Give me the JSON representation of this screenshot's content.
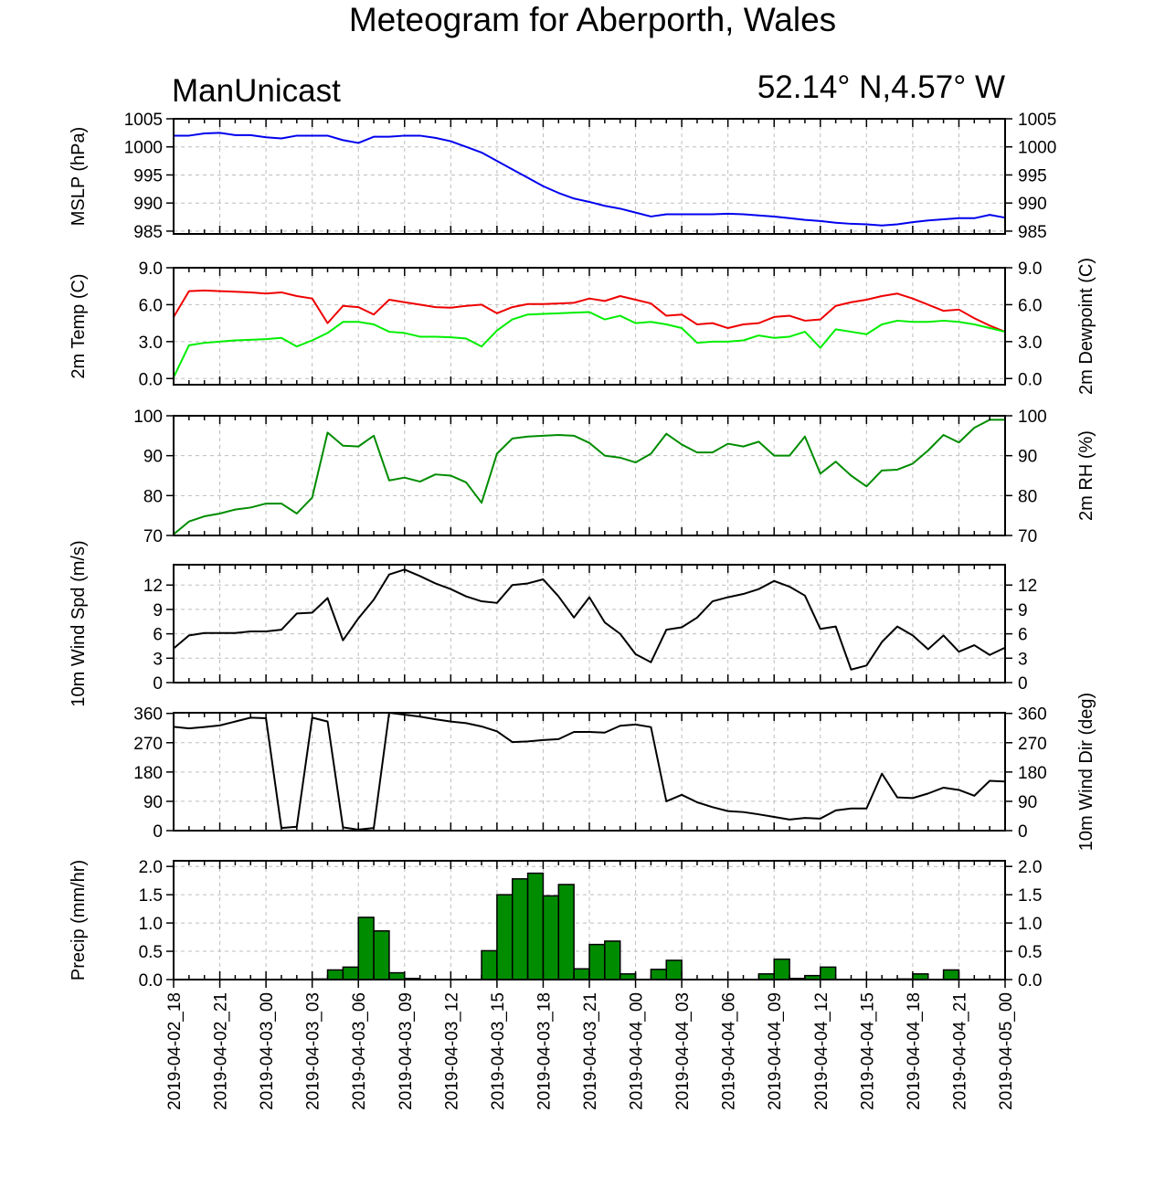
{
  "title": "Meteogram for Aberporth, Wales",
  "subtitle_left": "ManUnicast",
  "subtitle_right": "52.14° N,4.57° W",
  "chart_data": {
    "type": "line",
    "x_tick_labels": [
      "2019-04-02_18",
      "2019-04-02_21",
      "2019-04-03_00",
      "2019-04-03_03",
      "2019-04-03_06",
      "2019-04-03_09",
      "2019-04-03_12",
      "2019-04-03_15",
      "2019-04-03_18",
      "2019-04-03_21",
      "2019-04-04_00",
      "2019-04-04_03",
      "2019-04-04_06",
      "2019-04-04_09",
      "2019-04-04_12",
      "2019-04-04_15",
      "2019-04-04_18",
      "2019-04-04_21",
      "2019-04-05_00"
    ],
    "x_hours_span": 54,
    "panels": [
      {
        "id": "mslp",
        "type": "line",
        "ylabel": "MSLP (hPa)",
        "ylabel_right": "",
        "ylim": [
          984.5,
          1005
        ],
        "yticks": [
          985,
          990,
          995,
          1000,
          1005
        ],
        "tick_labels": [
          "985",
          "990",
          "995",
          "1000",
          "1005"
        ],
        "series": [
          {
            "color": "#0000ee",
            "values": [
              1002,
              1002,
              1002.4,
              1002.5,
              1002.1,
              1002.1,
              1001.7,
              1001.5,
              1002,
              1002,
              1002,
              1001.2,
              1000.7,
              1001.8,
              1001.8,
              1002,
              1002,
              1001.6,
              1001,
              1000,
              999,
              997.5,
              996,
              994.5,
              993,
              991.8,
              990.8,
              990.2,
              989.5,
              989,
              988.3,
              987.6,
              988,
              988,
              988,
              988,
              988.1,
              988,
              987.8,
              987.6,
              987.3,
              987,
              986.8,
              986.5,
              986.3,
              986.2,
              986,
              986.2,
              986.6,
              986.9,
              987.1,
              987.3,
              987.3,
              987.9,
              987.4
            ]
          }
        ]
      },
      {
        "id": "temp",
        "type": "line",
        "ylabel": "2m Temp (C)",
        "ylabel_right": "2m Dewpoint (C)",
        "ylim": [
          -0.5,
          9.0
        ],
        "yticks": [
          0,
          3,
          6,
          9
        ],
        "tick_labels": [
          "0.0",
          "3.0",
          "6.0",
          "9.0"
        ],
        "series": [
          {
            "color": "#ee0000",
            "values": [
              5.0,
              7.1,
              7.15,
              7.1,
              7.05,
              7.0,
              6.9,
              7.0,
              6.7,
              6.5,
              4.5,
              5.9,
              5.8,
              5.2,
              6.4,
              6.2,
              6.0,
              5.8,
              5.75,
              5.9,
              6.0,
              5.3,
              5.8,
              6.05,
              6.05,
              6.1,
              6.15,
              6.5,
              6.3,
              6.7,
              6.4,
              6.1,
              5.1,
              5.2,
              4.4,
              4.5,
              4.1,
              4.4,
              4.5,
              5.0,
              5.1,
              4.7,
              4.8,
              5.9,
              6.2,
              6.4,
              6.7,
              6.9,
              6.5,
              6.0,
              5.5,
              5.6,
              4.9,
              4.3,
              3.8
            ]
          },
          {
            "color": "#00ee00",
            "values": [
              0.1,
              2.7,
              2.9,
              3.0,
              3.1,
              3.15,
              3.2,
              3.3,
              2.6,
              3.1,
              3.7,
              4.6,
              4.6,
              4.4,
              3.8,
              3.7,
              3.4,
              3.4,
              3.35,
              3.25,
              2.6,
              3.9,
              4.8,
              5.2,
              5.25,
              5.3,
              5.35,
              5.4,
              4.8,
              5.1,
              4.5,
              4.6,
              4.4,
              4.1,
              2.9,
              3.0,
              3.0,
              3.1,
              3.5,
              3.3,
              3.4,
              3.8,
              2.5,
              4.0,
              3.8,
              3.6,
              4.4,
              4.7,
              4.6,
              4.6,
              4.7,
              4.6,
              4.4,
              4.1,
              3.8
            ]
          }
        ]
      },
      {
        "id": "rh",
        "type": "line",
        "ylabel": "",
        "ylabel_right": "2m RH (%)",
        "ylim": [
          70,
          100
        ],
        "yticks": [
          70,
          80,
          90,
          100
        ],
        "tick_labels": [
          "70",
          "80",
          "90",
          "100"
        ],
        "series": [
          {
            "color": "#008c00",
            "values": [
              70.3,
              73.5,
              74.8,
              75.5,
              76.5,
              77,
              78,
              78,
              75.5,
              79.5,
              95.8,
              92.5,
              92.3,
              95,
              83.8,
              84.5,
              83.5,
              85.3,
              85,
              83.3,
              78.2,
              90.5,
              94.3,
              94.8,
              95,
              95.2,
              95,
              93.2,
              90,
              89.5,
              88.3,
              90.5,
              95.5,
              92.8,
              90.8,
              90.8,
              93,
              92.3,
              93.5,
              90,
              90,
              94.8,
              85.5,
              88.5,
              85,
              82.3,
              86.3,
              86.5,
              88,
              91.3,
              95.2,
              93.3,
              97,
              99,
              99
            ]
          }
        ]
      },
      {
        "id": "wspd",
        "type": "line",
        "ylabel": "10m Wind Spd (m/s)",
        "ylabel_right": "",
        "ylim": [
          0,
          14.5
        ],
        "yticks": [
          0,
          3,
          6,
          9,
          12
        ],
        "tick_labels": [
          "0",
          "3",
          "6",
          "9",
          "12"
        ],
        "series": [
          {
            "color": "#000000",
            "values": [
              4.2,
              5.8,
              6.1,
              6.1,
              6.1,
              6.3,
              6.3,
              6.5,
              8.5,
              8.6,
              10.4,
              5.2,
              7.9,
              10.2,
              13.3,
              13.9,
              13.1,
              12.2,
              11.5,
              10.6,
              10,
              9.8,
              12,
              12.2,
              12.7,
              10.6,
              8,
              10.5,
              7.4,
              6,
              3.5,
              2.5,
              6.5,
              6.8,
              8,
              10,
              10.5,
              10.9,
              11.5,
              12.5,
              11.8,
              10.7,
              6.6,
              6.9,
              1.6,
              2.1,
              5,
              6.9,
              5.8,
              4.1,
              5.8,
              3.8,
              4.6,
              3.4,
              4.3
            ]
          }
        ]
      },
      {
        "id": "wdir",
        "type": "line",
        "ylabel": "",
        "ylabel_right": "10m Wind Dir (deg)",
        "ylim": [
          0,
          362
        ],
        "yticks": [
          0,
          90,
          180,
          270,
          360
        ],
        "tick_labels": [
          "0",
          "90",
          "180",
          "270",
          "360"
        ],
        "series": [
          {
            "color": "#000000",
            "values": [
              319,
              314,
              318,
              323,
              335,
              347,
              345,
              8,
              12,
              347,
              335,
              10,
              3,
              8,
              362,
              356,
              350,
              342,
              335,
              330,
              320,
              305,
              272,
              274,
              278,
              281,
              303,
              303,
              301,
              322,
              326,
              318,
              90,
              110,
              87,
              72,
              60,
              57,
              50,
              42,
              34,
              39,
              37,
              62,
              68,
              68,
              175,
              102,
              100,
              114,
              132,
              125,
              107,
              153,
              151
            ]
          }
        ]
      },
      {
        "id": "precip",
        "type": "bar",
        "ylabel": "Precip (mm/hr)",
        "ylabel_right": "",
        "ylim": [
          0,
          2.1
        ],
        "yticks": [
          0,
          0.5,
          1.0,
          1.5,
          2.0
        ],
        "tick_labels": [
          "0.0",
          "0.5",
          "1.0",
          "1.5",
          "2.0"
        ],
        "bar_color": "#008c00",
        "values": [
          0,
          0,
          0,
          0,
          0,
          0,
          0,
          0,
          0,
          0.01,
          0.17,
          0.22,
          1.1,
          0.86,
          0.12,
          0.02,
          0,
          0,
          0,
          0,
          0.51,
          1.5,
          1.78,
          1.88,
          1.48,
          1.68,
          0.19,
          0.62,
          0.68,
          0.1,
          0,
          0.18,
          0.34,
          0,
          0,
          0,
          0,
          0,
          0.1,
          0.36,
          0.02,
          0.07,
          0.22,
          0,
          0,
          0,
          0,
          0.01,
          0.1,
          0,
          0.17,
          0,
          0,
          0
        ]
      }
    ]
  }
}
